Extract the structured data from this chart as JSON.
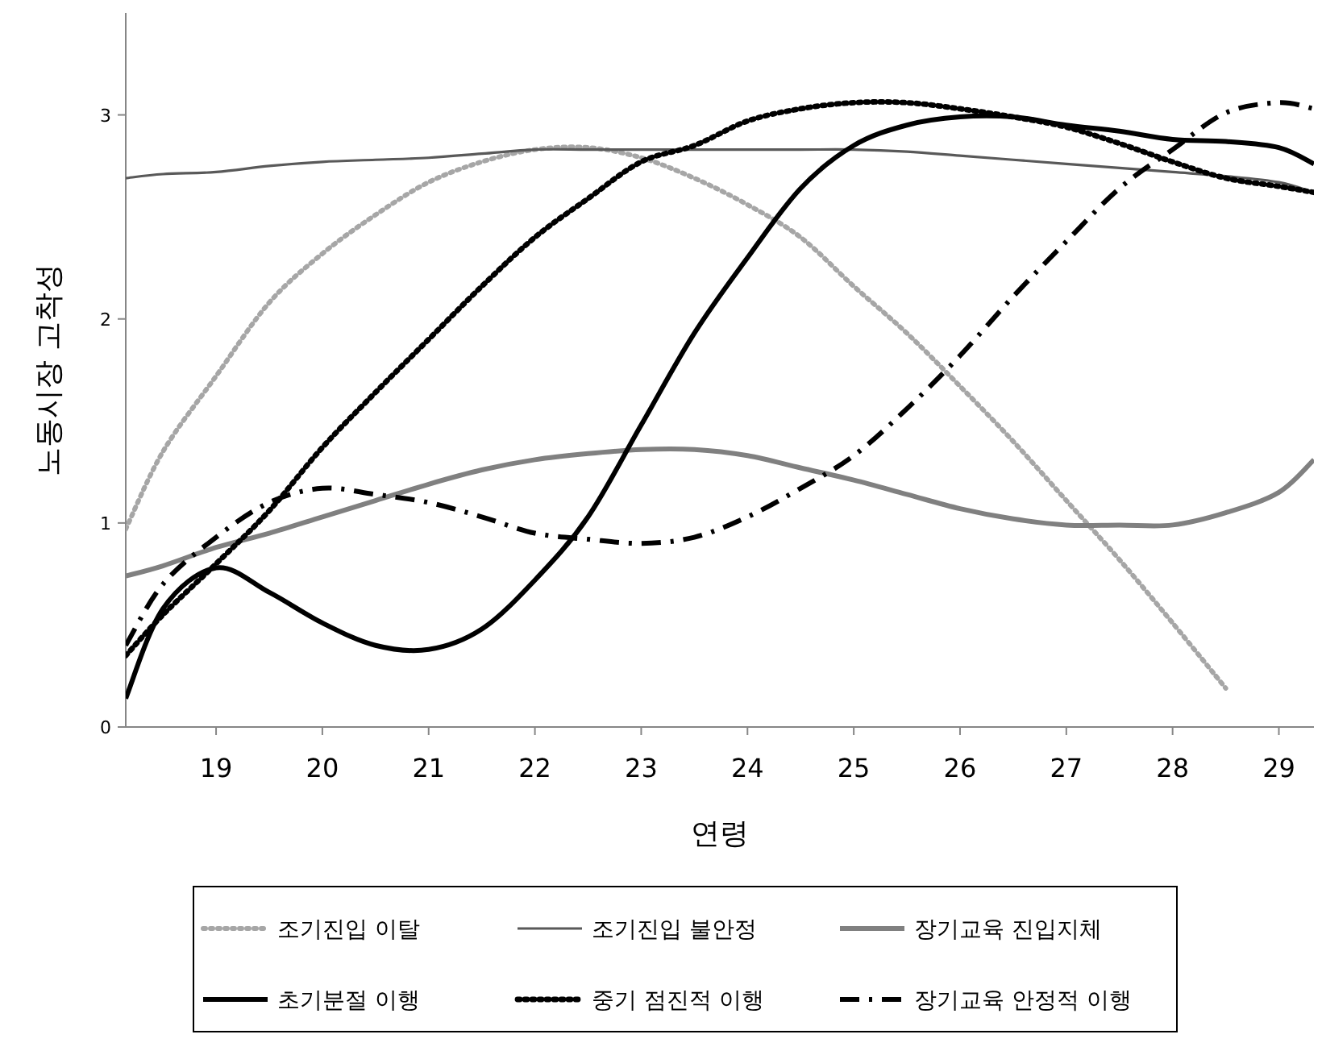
{
  "chart_data": {
    "type": "line",
    "xlabel": "연령",
    "ylabel": "노동시장 고착성",
    "x": [
      18.15,
      18.5,
      19,
      19.5,
      20,
      20.5,
      21,
      21.5,
      22,
      22.5,
      23,
      23.5,
      24,
      24.5,
      25,
      25.5,
      26,
      26.5,
      27,
      27.5,
      28,
      28.5,
      29,
      29.33
    ],
    "xlim": [
      18.15,
      29.33
    ],
    "ylim": [
      0,
      3.5
    ],
    "xticks": [
      19,
      20,
      21,
      22,
      23,
      24,
      25,
      26,
      27,
      28,
      29
    ],
    "yticks": [
      0,
      1,
      2,
      3
    ],
    "grid": false,
    "legend": "bottom",
    "series": [
      {
        "name": "조기진입 이탈",
        "color": "#a6a6a6",
        "line_style": "dotted",
        "values": [
          0.97,
          1.35,
          1.72,
          2.08,
          2.32,
          2.51,
          2.67,
          2.77,
          2.83,
          2.84,
          2.79,
          2.69,
          2.56,
          2.4,
          2.16,
          1.93,
          1.67,
          1.4,
          1.11,
          0.82,
          0.51,
          0.19,
          null,
          null
        ]
      },
      {
        "name": "조기진입 불안정",
        "color": "#595959",
        "line_style": "solid",
        "values": [
          2.69,
          2.71,
          2.72,
          2.75,
          2.77,
          2.78,
          2.79,
          2.81,
          2.83,
          2.83,
          2.83,
          2.83,
          2.83,
          2.83,
          2.83,
          2.82,
          2.8,
          2.78,
          2.76,
          2.74,
          2.72,
          2.7,
          2.67,
          2.62
        ]
      },
      {
        "name": "장기교육 진입지체",
        "color": "#808080",
        "line_style": "solid",
        "values": [
          0.74,
          0.79,
          0.88,
          0.95,
          1.03,
          1.11,
          1.19,
          1.26,
          1.31,
          1.34,
          1.36,
          1.36,
          1.33,
          1.27,
          1.21,
          1.14,
          1.07,
          1.02,
          0.99,
          0.99,
          0.99,
          1.05,
          1.15,
          1.31
        ]
      },
      {
        "name": "초기분절 이행",
        "color": "#000000",
        "line_style": "solid",
        "values": [
          0.14,
          0.58,
          0.78,
          0.66,
          0.51,
          0.4,
          0.38,
          0.48,
          0.72,
          1.03,
          1.48,
          1.93,
          2.3,
          2.64,
          2.85,
          2.95,
          2.99,
          2.99,
          2.95,
          2.92,
          2.88,
          2.87,
          2.84,
          2.76
        ]
      },
      {
        "name": "중기 점진적 이행",
        "color": "#000000",
        "line_style": "dotted",
        "values": [
          0.35,
          0.55,
          0.8,
          1.06,
          1.37,
          1.64,
          1.9,
          2.16,
          2.4,
          2.59,
          2.77,
          2.85,
          2.97,
          3.03,
          3.06,
          3.06,
          3.03,
          2.99,
          2.94,
          2.86,
          2.77,
          2.69,
          2.65,
          2.62
        ]
      },
      {
        "name": "장기교육 안정적 이행",
        "color": "#000000",
        "line_style": "dashdot",
        "values": [
          0.4,
          0.7,
          0.93,
          1.1,
          1.17,
          1.14,
          1.1,
          1.03,
          0.95,
          0.92,
          0.9,
          0.93,
          1.03,
          1.17,
          1.33,
          1.56,
          1.82,
          2.11,
          2.38,
          2.64,
          2.83,
          3.01,
          3.06,
          3.03
        ]
      }
    ]
  }
}
